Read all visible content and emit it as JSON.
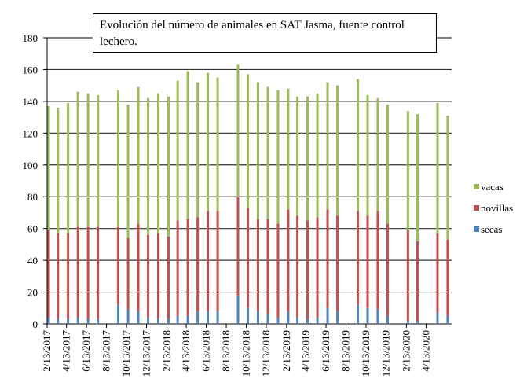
{
  "chart_data": {
    "type": "stacked-bar",
    "title": "Evolución del número de animales en SAT Jasma, fuente control lechero.",
    "x": [
      "2/13/2017",
      "3/13/2017",
      "4/13/2017",
      "5/13/2017",
      "6/13/2017",
      "7/13/2017",
      "9/13/2017",
      "10/13/2017",
      "11/13/2017",
      "12/13/2017",
      "1/13/2018",
      "2/13/2018",
      "3/13/2018",
      "4/13/2018",
      "5/13/2018",
      "6/13/2018",
      "7/13/2018",
      "9/13/2018",
      "10/13/2018",
      "11/13/2018",
      "12/13/2018",
      "1/13/2019",
      "2/13/2019",
      "3/13/2019",
      "4/13/2019",
      "5/13/2019",
      "6/13/2019",
      "7/13/2019",
      "9/13/2019",
      "10/13/2019",
      "11/13/2019",
      "12/13/2019",
      "2/13/2020",
      "3/13/2020",
      "5/13/2020",
      "6/13/2020"
    ],
    "series": [
      {
        "name": "secas",
        "color": "#4f81bd",
        "values": [
          4,
          3,
          3,
          4,
          3,
          3,
          12,
          9,
          8,
          4,
          3,
          3,
          5,
          5,
          8,
          8,
          8,
          18,
          10,
          8,
          6,
          4,
          8,
          4,
          3,
          4,
          10,
          8,
          12,
          10,
          9,
          5,
          2,
          2,
          7,
          5
        ]
      },
      {
        "name": "novillas",
        "color": "#c0504d",
        "values": [
          55,
          54,
          54,
          57,
          58,
          58,
          49,
          45,
          55,
          52,
          54,
          52,
          60,
          61,
          59,
          63,
          63,
          62,
          63,
          58,
          60,
          59,
          64,
          64,
          62,
          63,
          62,
          60,
          59,
          58,
          62,
          58,
          57,
          50,
          50,
          48
        ]
      },
      {
        "name": "vacas",
        "color": "#9bbb59",
        "values": [
          78,
          79,
          82,
          85,
          84,
          83,
          86,
          84,
          86,
          86,
          88,
          88,
          88,
          93,
          85,
          87,
          84,
          83,
          84,
          86,
          83,
          84,
          76,
          75,
          78,
          78,
          80,
          82,
          83,
          76,
          71,
          75,
          75,
          80,
          82,
          78
        ]
      }
    ],
    "ylim": [
      0,
      180
    ],
    "yticks": [
      0,
      20,
      40,
      60,
      80,
      100,
      120,
      140,
      160,
      180
    ],
    "xlim": [
      "2/13/2017",
      "6/30/2020"
    ],
    "xticks": [
      "2/13/2017",
      "4/13/2017",
      "6/13/2017",
      "8/13/2017",
      "10/13/2017",
      "12/13/2017",
      "2/13/2018",
      "4/13/2018",
      "6/13/2018",
      "8/13/2018",
      "10/13/2018",
      "12/13/2018",
      "2/13/2019",
      "4/13/2019",
      "6/13/2019",
      "8/13/2019",
      "10/13/2019",
      "12/13/2019",
      "2/13/2020",
      "4/13/2020"
    ],
    "grid": true,
    "legend": "right"
  }
}
